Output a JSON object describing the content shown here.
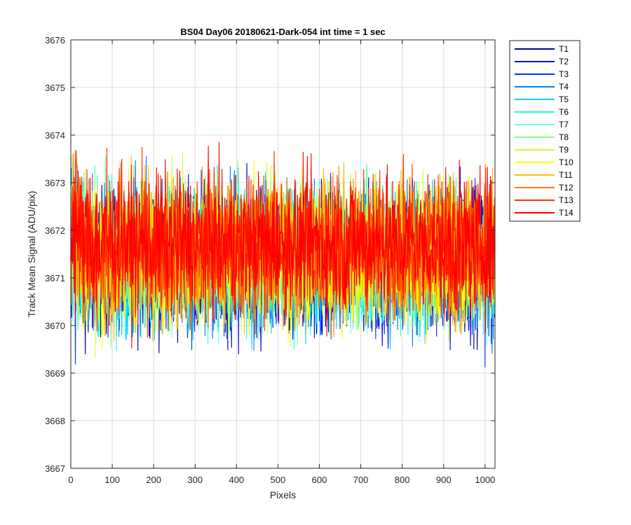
{
  "chart_data": {
    "type": "line",
    "title": "BS04 Day06 20180621-Dark-054 int time = 1 sec",
    "xlabel": "Pixels",
    "ylabel": "Track Mean Signal (ADU/pix)",
    "xlim": [
      0,
      1024
    ],
    "ylim": [
      3667,
      3676
    ],
    "xticks": [
      0,
      100,
      200,
      300,
      400,
      500,
      600,
      700,
      800,
      900,
      1000
    ],
    "yticks": [
      3667,
      3668,
      3669,
      3670,
      3671,
      3672,
      3673,
      3674,
      3675,
      3676
    ],
    "grid": true,
    "legend_position": "outside-top-right",
    "noise_model": {
      "n_points": 1024,
      "center": 3671.4,
      "half_range": 2.0,
      "note_values_are_estimated_envelope": true
    },
    "series": [
      {
        "name": "T1",
        "color": "#00008f",
        "mean": 3671.3
      },
      {
        "name": "T2",
        "color": "#0000df",
        "mean": 3671.3
      },
      {
        "name": "T3",
        "color": "#0030ff",
        "mean": 3671.3
      },
      {
        "name": "T4",
        "color": "#0080ff",
        "mean": 3671.4
      },
      {
        "name": "T5",
        "color": "#00cfff",
        "mean": 3671.4
      },
      {
        "name": "T6",
        "color": "#20ffdf",
        "mean": 3671.4
      },
      {
        "name": "T7",
        "color": "#70ffdf",
        "mean": 3671.4
      },
      {
        "name": "T8",
        "color": "#80ff80",
        "mean": 3671.5
      },
      {
        "name": "T9",
        "color": "#cfff30",
        "mean": 3671.5
      },
      {
        "name": "T10",
        "color": "#ffff00",
        "mean": 3671.5
      },
      {
        "name": "T11",
        "color": "#ffbf00",
        "mean": 3671.6
      },
      {
        "name": "T12",
        "color": "#ff8000",
        "mean": 3671.6
      },
      {
        "name": "T13",
        "color": "#ff3000",
        "mean": 3671.7
      },
      {
        "name": "T14",
        "color": "#ff0000",
        "mean": 3671.7
      }
    ]
  }
}
